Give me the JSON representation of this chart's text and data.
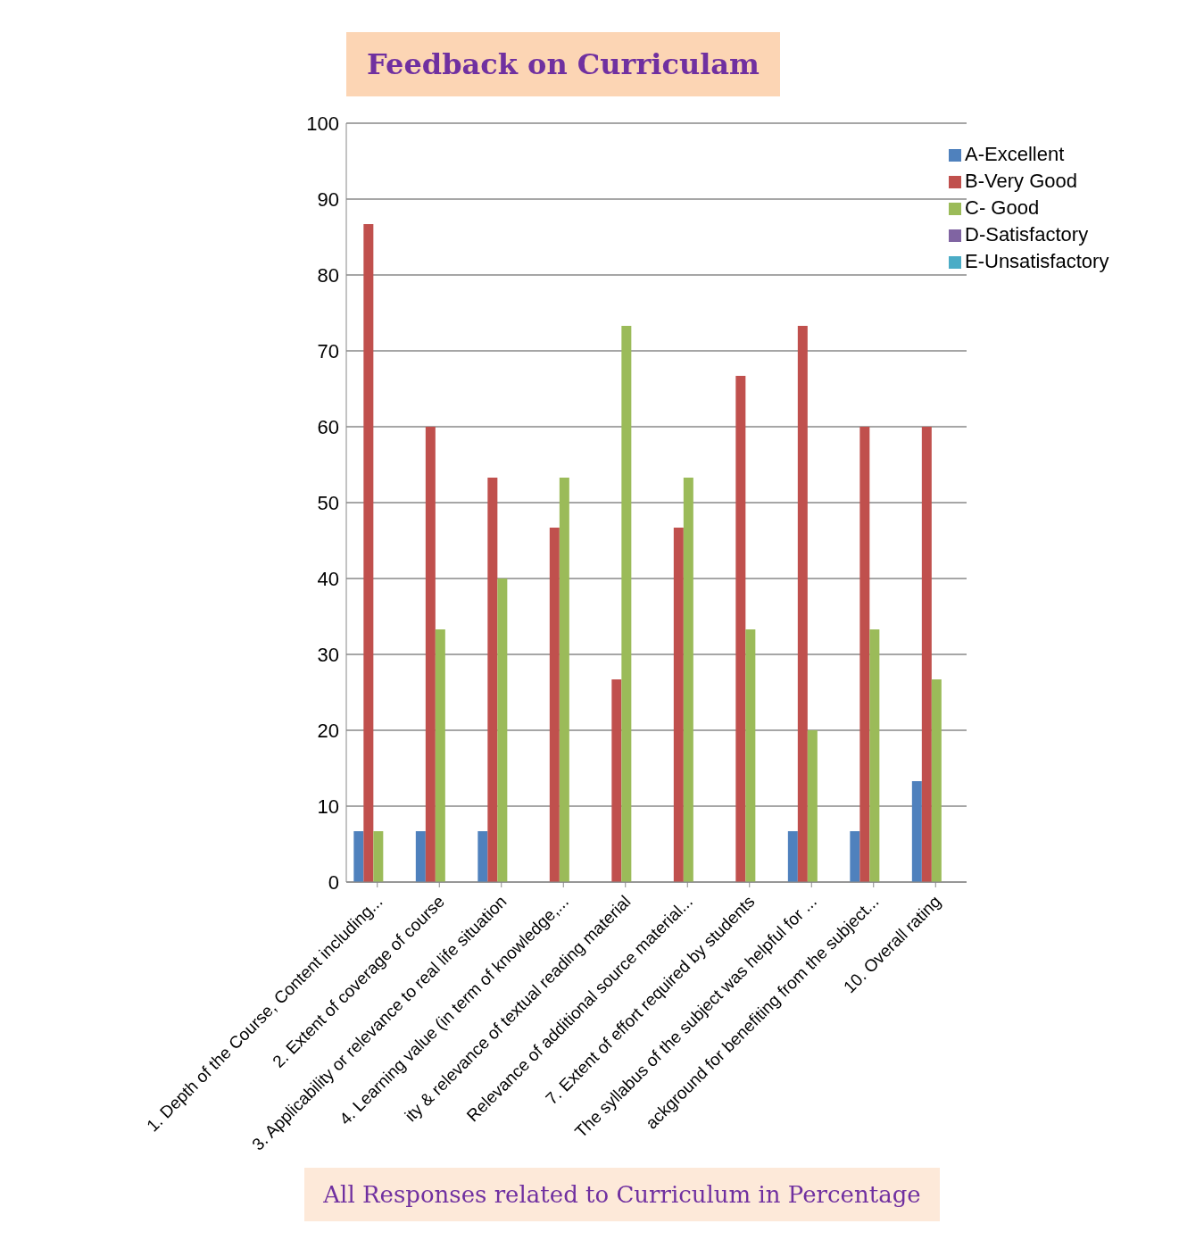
{
  "chart_data": {
    "type": "bar",
    "title": "Feedback on Curriculam",
    "xlabel": "All Responses related to Curriculum in Percentage",
    "categories": [
      "1. Depth of the Course, Content including...",
      "2. Extent of coverage of course",
      "3. Applicability or relevance to real life  situation",
      "4. Learning value (in term of knowledge,...",
      "ity & relevance of textual reading material",
      "Relevance of additional  source material...",
      "7. Extent of effort required by students",
      "The syllabus of the subject was helpful for ...",
      "ackground for benefiting from the subject...",
      "10. Overall rating"
    ],
    "series": [
      {
        "name": "A-Excellent",
        "color": "#4f81bd",
        "values": [
          6.7,
          6.7,
          6.7,
          0,
          0,
          0,
          0,
          6.7,
          6.7,
          13.3
        ]
      },
      {
        "name": "B-Very Good",
        "color": "#c0504d",
        "values": [
          86.7,
          60,
          53.3,
          46.7,
          26.7,
          46.7,
          66.7,
          73.3,
          60,
          60
        ]
      },
      {
        "name": "C- Good",
        "color": "#9bbb59",
        "values": [
          6.7,
          33.3,
          40,
          53.3,
          73.3,
          53.3,
          33.3,
          20,
          33.3,
          26.7
        ]
      },
      {
        "name": "D-Satisfactory",
        "color": "#8064a2",
        "values": [
          0,
          0,
          0,
          0,
          0,
          0,
          0,
          0,
          0,
          0
        ]
      },
      {
        "name": "E-Unsatisfactory",
        "color": "#4bacc6",
        "values": [
          0,
          0,
          0,
          0,
          0,
          0,
          0,
          0,
          0,
          0
        ]
      }
    ],
    "ylim": [
      0,
      100
    ],
    "yticks": [
      0,
      10,
      20,
      30,
      40,
      50,
      60,
      70,
      80,
      90,
      100
    ],
    "grid": "y",
    "legend": "top right"
  }
}
